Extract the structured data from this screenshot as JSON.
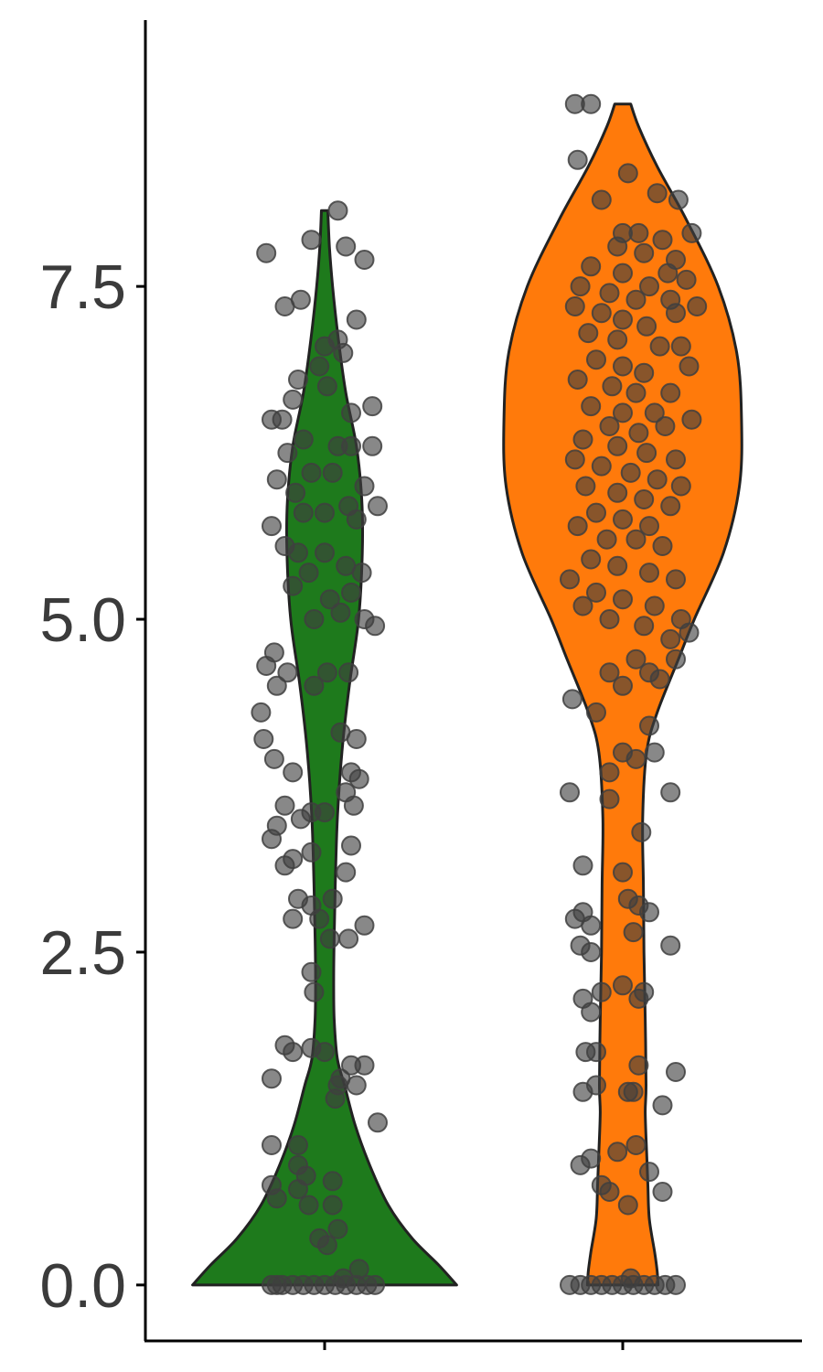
{
  "chart_data": {
    "type": "violin",
    "title": "",
    "xlabel": "",
    "ylabel": "",
    "ylim": [
      -0.42,
      9.5
    ],
    "yticks": [
      0.0,
      2.5,
      5.0,
      7.5
    ],
    "ytick_labels": [
      "0.0",
      "2.5",
      "5.0",
      "7.5"
    ],
    "categories": [
      "",
      ""
    ],
    "grid": false,
    "legend": "none",
    "point_color": "#3f3f3f",
    "outline_color": "#222222",
    "series": [
      {
        "color": "#1e7a1c",
        "max": 8.07,
        "profile": [
          [
            0.0,
            0.498
          ],
          [
            0.15,
            0.43
          ],
          [
            0.35,
            0.33
          ],
          [
            0.6,
            0.24
          ],
          [
            0.9,
            0.17
          ],
          [
            1.2,
            0.115
          ],
          [
            1.5,
            0.075
          ],
          [
            1.7,
            0.048
          ],
          [
            2.0,
            0.036
          ],
          [
            2.3,
            0.034
          ],
          [
            2.6,
            0.036
          ],
          [
            3.0,
            0.04
          ],
          [
            3.5,
            0.048
          ],
          [
            4.0,
            0.065
          ],
          [
            4.5,
            0.093
          ],
          [
            5.0,
            0.128
          ],
          [
            5.5,
            0.142
          ],
          [
            5.9,
            0.14
          ],
          [
            6.3,
            0.12
          ],
          [
            6.7,
            0.08
          ],
          [
            7.1,
            0.052
          ],
          [
            7.5,
            0.03
          ],
          [
            7.8,
            0.018
          ],
          [
            8.07,
            0.012
          ]
        ],
        "points": [
          [
            -0.22,
            7.75
          ],
          [
            -0.15,
            7.35
          ],
          [
            -0.05,
            7.85
          ],
          [
            0.05,
            8.07
          ],
          [
            0.08,
            7.8
          ],
          [
            0.15,
            7.7
          ],
          [
            -0.09,
            7.4
          ],
          [
            0.12,
            7.25
          ],
          [
            0.0,
            7.05
          ],
          [
            0.05,
            7.1
          ],
          [
            0.07,
            7.0
          ],
          [
            -0.1,
            6.8
          ],
          [
            -0.02,
            6.9
          ],
          [
            0.01,
            6.75
          ],
          [
            -0.16,
            6.5
          ],
          [
            -0.12,
            6.65
          ],
          [
            0.1,
            6.55
          ],
          [
            0.18,
            6.6
          ],
          [
            -0.2,
            6.5
          ],
          [
            -0.08,
            6.35
          ],
          [
            -0.14,
            6.25
          ],
          [
            -0.18,
            6.05
          ],
          [
            0.05,
            6.3
          ],
          [
            0.1,
            6.3
          ],
          [
            0.18,
            6.3
          ],
          [
            -0.05,
            6.1
          ],
          [
            0.03,
            6.1
          ],
          [
            -0.11,
            5.95
          ],
          [
            0.15,
            6.0
          ],
          [
            -0.08,
            5.8
          ],
          [
            0.0,
            5.8
          ],
          [
            0.09,
            5.85
          ],
          [
            0.2,
            5.85
          ],
          [
            -0.2,
            5.7
          ],
          [
            -0.15,
            5.55
          ],
          [
            -0.1,
            5.5
          ],
          [
            0.0,
            5.5
          ],
          [
            0.12,
            5.75
          ],
          [
            -0.06,
            5.35
          ],
          [
            0.08,
            5.4
          ],
          [
            0.14,
            5.35
          ],
          [
            -0.12,
            5.25
          ],
          [
            0.02,
            5.15
          ],
          [
            0.1,
            5.2
          ],
          [
            -0.04,
            5.0
          ],
          [
            0.06,
            5.05
          ],
          [
            0.15,
            5.0
          ],
          [
            0.19,
            4.95
          ],
          [
            -0.19,
            4.75
          ],
          [
            -0.22,
            4.65
          ],
          [
            -0.14,
            4.6
          ],
          [
            -0.04,
            4.5
          ],
          [
            0.01,
            4.6
          ],
          [
            0.09,
            4.6
          ],
          [
            -0.18,
            4.5
          ],
          [
            -0.24,
            4.3
          ],
          [
            -0.23,
            4.1
          ],
          [
            -0.19,
            3.95
          ],
          [
            0.06,
            4.15
          ],
          [
            0.12,
            4.1
          ],
          [
            -0.12,
            3.85
          ],
          [
            0.1,
            3.85
          ],
          [
            0.13,
            3.8
          ],
          [
            0.08,
            3.7
          ],
          [
            -0.15,
            3.6
          ],
          [
            -0.09,
            3.5
          ],
          [
            -0.18,
            3.45
          ],
          [
            -0.2,
            3.35
          ],
          [
            -0.05,
            3.55
          ],
          [
            0.0,
            3.55
          ],
          [
            0.11,
            3.6
          ],
          [
            -0.12,
            3.2
          ],
          [
            -0.05,
            3.25
          ],
          [
            0.08,
            3.1
          ],
          [
            0.1,
            3.3
          ],
          [
            -0.15,
            3.15
          ],
          [
            -0.1,
            2.9
          ],
          [
            -0.05,
            2.85
          ],
          [
            0.03,
            2.9
          ],
          [
            -0.12,
            2.75
          ],
          [
            -0.02,
            2.75
          ],
          [
            0.02,
            2.6
          ],
          [
            0.15,
            2.7
          ],
          [
            0.09,
            2.6
          ],
          [
            -0.05,
            2.35
          ],
          [
            -0.04,
            2.2
          ],
          [
            -0.15,
            1.8
          ],
          [
            -0.12,
            1.75
          ],
          [
            -0.05,
            1.78
          ],
          [
            0.0,
            1.75
          ],
          [
            0.1,
            1.65
          ],
          [
            0.15,
            1.65
          ],
          [
            -0.2,
            1.55
          ],
          [
            0.05,
            1.5
          ],
          [
            0.12,
            1.5
          ],
          [
            0.06,
            1.55
          ],
          [
            0.04,
            1.4
          ],
          [
            0.2,
            1.22
          ],
          [
            -0.2,
            1.05
          ],
          [
            -0.1,
            1.05
          ],
          [
            -0.1,
            0.9
          ],
          [
            -0.07,
            0.82
          ],
          [
            -0.2,
            0.75
          ],
          [
            -0.1,
            0.72
          ],
          [
            0.03,
            0.78
          ],
          [
            -0.18,
            0.65
          ],
          [
            -0.06,
            0.6
          ],
          [
            0.03,
            0.6
          ],
          [
            -0.02,
            0.35
          ],
          [
            0.05,
            0.42
          ],
          [
            0.01,
            0.3
          ],
          [
            0.13,
            0.12
          ],
          [
            0.07,
            0.05
          ],
          [
            -0.2,
            0.0
          ],
          [
            -0.16,
            0.0
          ],
          [
            -0.12,
            0.0
          ],
          [
            -0.08,
            0.0
          ],
          [
            -0.04,
            0.0
          ],
          [
            0.0,
            0.0
          ],
          [
            0.04,
            0.0
          ],
          [
            0.08,
            0.0
          ],
          [
            0.12,
            0.0
          ],
          [
            0.16,
            0.0
          ],
          [
            0.19,
            0.0
          ],
          [
            -0.18,
            0.0
          ]
        ]
      },
      {
        "color": "#ff7a0b",
        "max": 8.87,
        "profile": [
          [
            0.0,
            0.133
          ],
          [
            0.1,
            0.13
          ],
          [
            0.25,
            0.12
          ],
          [
            0.5,
            0.1
          ],
          [
            0.75,
            0.095
          ],
          [
            1.0,
            0.09
          ],
          [
            1.3,
            0.085
          ],
          [
            1.5,
            0.088
          ],
          [
            2.0,
            0.085
          ],
          [
            2.5,
            0.08
          ],
          [
            3.0,
            0.078
          ],
          [
            3.5,
            0.075
          ],
          [
            4.0,
            0.09
          ],
          [
            4.3,
            0.13
          ],
          [
            4.7,
            0.21
          ],
          [
            5.0,
            0.27
          ],
          [
            5.5,
            0.38
          ],
          [
            6.0,
            0.44
          ],
          [
            6.5,
            0.448
          ],
          [
            7.0,
            0.43
          ],
          [
            7.5,
            0.36
          ],
          [
            8.0,
            0.24
          ],
          [
            8.4,
            0.13
          ],
          [
            8.7,
            0.06
          ],
          [
            8.87,
            0.03
          ]
        ],
        "points": [
          [
            -0.18,
            8.87
          ],
          [
            -0.12,
            8.87
          ],
          [
            -0.17,
            8.45
          ],
          [
            0.02,
            8.35
          ],
          [
            -0.08,
            8.15
          ],
          [
            0.13,
            8.2
          ],
          [
            0.21,
            8.15
          ],
          [
            0.0,
            7.9
          ],
          [
            0.06,
            7.9
          ],
          [
            0.15,
            7.85
          ],
          [
            -0.02,
            7.8
          ],
          [
            0.08,
            7.75
          ],
          [
            0.2,
            7.7
          ],
          [
            0.26,
            7.9
          ],
          [
            0.17,
            7.6
          ],
          [
            0.24,
            7.55
          ],
          [
            -0.12,
            7.65
          ],
          [
            0.0,
            7.6
          ],
          [
            0.1,
            7.5
          ],
          [
            -0.16,
            7.5
          ],
          [
            -0.05,
            7.45
          ],
          [
            0.05,
            7.4
          ],
          [
            0.18,
            7.4
          ],
          [
            -0.18,
            7.35
          ],
          [
            -0.08,
            7.3
          ],
          [
            0.0,
            7.25
          ],
          [
            0.09,
            7.2
          ],
          [
            0.2,
            7.3
          ],
          [
            0.28,
            7.35
          ],
          [
            -0.13,
            7.15
          ],
          [
            -0.02,
            7.1
          ],
          [
            0.14,
            7.05
          ],
          [
            0.22,
            7.05
          ],
          [
            -0.1,
            6.95
          ],
          [
            0.0,
            6.9
          ],
          [
            0.08,
            6.85
          ],
          [
            0.25,
            6.9
          ],
          [
            -0.17,
            6.8
          ],
          [
            -0.04,
            6.75
          ],
          [
            0.05,
            6.7
          ],
          [
            0.18,
            6.7
          ],
          [
            -0.12,
            6.6
          ],
          [
            0.0,
            6.55
          ],
          [
            0.12,
            6.55
          ],
          [
            0.26,
            6.5
          ],
          [
            -0.05,
            6.45
          ],
          [
            0.06,
            6.4
          ],
          [
            0.16,
            6.45
          ],
          [
            -0.15,
            6.35
          ],
          [
            -0.02,
            6.3
          ],
          [
            0.09,
            6.25
          ],
          [
            0.2,
            6.2
          ],
          [
            -0.18,
            6.2
          ],
          [
            -0.08,
            6.15
          ],
          [
            0.03,
            6.1
          ],
          [
            0.13,
            6.05
          ],
          [
            0.22,
            6.0
          ],
          [
            -0.14,
            6.0
          ],
          [
            -0.02,
            5.95
          ],
          [
            0.08,
            5.9
          ],
          [
            0.18,
            5.85
          ],
          [
            -0.1,
            5.8
          ],
          [
            0.0,
            5.75
          ],
          [
            0.1,
            5.7
          ],
          [
            -0.17,
            5.7
          ],
          [
            -0.06,
            5.6
          ],
          [
            0.05,
            5.6
          ],
          [
            0.15,
            5.55
          ],
          [
            -0.12,
            5.45
          ],
          [
            -0.02,
            5.4
          ],
          [
            0.1,
            5.35
          ],
          [
            0.2,
            5.3
          ],
          [
            -0.2,
            5.3
          ],
          [
            -0.1,
            5.2
          ],
          [
            0.0,
            5.15
          ],
          [
            0.12,
            5.1
          ],
          [
            0.22,
            5.0
          ],
          [
            -0.15,
            5.1
          ],
          [
            -0.05,
            5.0
          ],
          [
            0.08,
            4.95
          ],
          [
            0.18,
            4.85
          ],
          [
            0.25,
            4.9
          ],
          [
            0.05,
            4.7
          ],
          [
            0.1,
            4.6
          ],
          [
            -0.05,
            4.6
          ],
          [
            0.0,
            4.5
          ],
          [
            0.14,
            4.55
          ],
          [
            0.2,
            4.7
          ],
          [
            -0.19,
            4.4
          ],
          [
            -0.1,
            4.3
          ],
          [
            0.1,
            4.2
          ],
          [
            0.0,
            4.0
          ],
          [
            -0.05,
            3.85
          ],
          [
            0.05,
            3.95
          ],
          [
            0.12,
            4.0
          ],
          [
            -0.2,
            3.7
          ],
          [
            -0.05,
            3.65
          ],
          [
            0.18,
            3.7
          ],
          [
            0.07,
            3.4
          ],
          [
            -0.15,
            3.15
          ],
          [
            0.0,
            3.1
          ],
          [
            -0.18,
            2.75
          ],
          [
            -0.15,
            2.8
          ],
          [
            -0.12,
            2.7
          ],
          [
            -0.16,
            2.55
          ],
          [
            -0.12,
            2.5
          ],
          [
            0.02,
            2.9
          ],
          [
            0.06,
            2.85
          ],
          [
            0.1,
            2.8
          ],
          [
            0.04,
            2.65
          ],
          [
            0.18,
            2.55
          ],
          [
            -0.15,
            2.15
          ],
          [
            -0.12,
            2.05
          ],
          [
            -0.08,
            2.2
          ],
          [
            0.0,
            2.25
          ],
          [
            0.06,
            2.15
          ],
          [
            0.08,
            2.2
          ],
          [
            -0.14,
            1.75
          ],
          [
            -0.1,
            1.75
          ],
          [
            -0.1,
            1.5
          ],
          [
            0.06,
            1.65
          ],
          [
            0.04,
            1.45
          ],
          [
            0.02,
            1.45
          ],
          [
            0.15,
            1.35
          ],
          [
            0.2,
            1.6
          ],
          [
            -0.15,
            1.45
          ],
          [
            -0.16,
            0.9
          ],
          [
            -0.12,
            0.95
          ],
          [
            0.05,
            1.05
          ],
          [
            -0.02,
            1.0
          ],
          [
            0.1,
            0.85
          ],
          [
            0.15,
            0.7
          ],
          [
            -0.05,
            0.7
          ],
          [
            0.02,
            0.6
          ],
          [
            -0.08,
            0.75
          ],
          [
            -0.2,
            0.0
          ],
          [
            -0.16,
            0.0
          ],
          [
            -0.12,
            0.0
          ],
          [
            -0.08,
            0.0
          ],
          [
            -0.04,
            0.0
          ],
          [
            0.0,
            0.0
          ],
          [
            0.04,
            0.0
          ],
          [
            0.08,
            0.0
          ],
          [
            0.12,
            0.0
          ],
          [
            0.16,
            0.0
          ],
          [
            0.2,
            0.0
          ],
          [
            0.03,
            0.05
          ]
        ]
      }
    ]
  }
}
